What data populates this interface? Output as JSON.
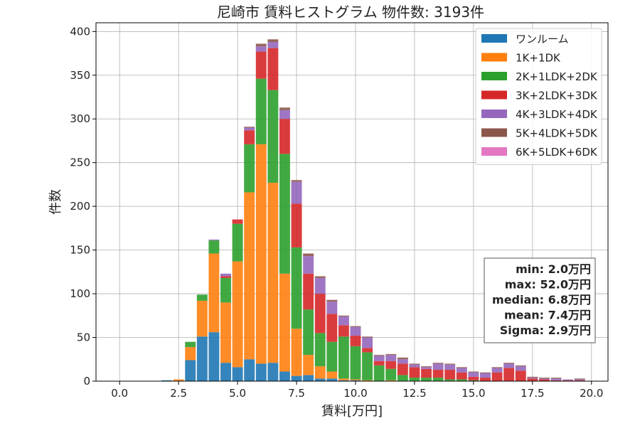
{
  "chart_data": {
    "type": "bar",
    "stacked": true,
    "title": "尼崎市 賃料ヒストグラム 物件数: 3193件",
    "xlabel": "賃料[万円]",
    "ylabel": "件数",
    "xlim": [
      -1.0,
      20.7
    ],
    "ylim": [
      0,
      410
    ],
    "xticks": [
      0.0,
      2.5,
      5.0,
      7.5,
      10.0,
      12.5,
      15.0,
      17.5,
      20.0
    ],
    "xtick_labels": [
      "0.0",
      "2.5",
      "5.0",
      "7.5",
      "10.0",
      "12.5",
      "15.0",
      "17.5",
      "20.0"
    ],
    "yticks": [
      0,
      50,
      100,
      150,
      200,
      250,
      300,
      350,
      400
    ],
    "ytick_labels": [
      "0",
      "50",
      "100",
      "150",
      "200",
      "250",
      "300",
      "350",
      "400"
    ],
    "grid": true,
    "legend_position": "top-right",
    "bin_width": 0.5,
    "x": [
      2.0,
      2.5,
      3.0,
      3.5,
      4.0,
      4.5,
      5.0,
      5.5,
      6.0,
      6.5,
      7.0,
      7.5,
      8.0,
      8.5,
      9.0,
      9.5,
      10.0,
      10.5,
      11.0,
      11.5,
      12.0,
      12.5,
      13.0,
      13.5,
      14.0,
      14.5,
      15.0,
      15.5,
      16.0,
      16.5,
      17.0,
      17.5,
      18.0,
      18.5,
      19.0,
      19.5
    ],
    "series": [
      {
        "name": "ワンルーム",
        "color": "#1f77b4",
        "values": [
          1,
          0,
          24,
          51,
          56,
          21,
          16,
          25,
          20,
          21,
          11,
          6,
          7,
          3,
          3,
          1,
          1,
          0,
          0,
          0,
          0,
          0,
          0,
          0,
          0,
          0,
          0,
          0,
          0,
          0,
          0,
          0,
          0,
          0,
          0,
          0
        ]
      },
      {
        "name": "1K+1DK",
        "color": "#ff7f0e",
        "values": [
          0,
          2,
          15,
          41,
          90,
          69,
          121,
          191,
          251,
          206,
          112,
          54,
          23,
          14,
          8,
          2,
          1,
          1,
          0,
          1,
          0,
          0,
          0,
          0,
          0,
          0,
          0,
          0,
          0,
          0,
          0,
          0,
          0,
          0,
          0,
          0
        ]
      },
      {
        "name": "2K+1LDK+2DK",
        "color": "#2ca02c",
        "values": [
          0,
          0,
          6,
          7,
          15,
          28,
          43,
          55,
          75,
          106,
          137,
          93,
          52,
          38,
          34,
          48,
          38,
          32,
          18,
          13,
          7,
          4,
          4,
          4,
          2,
          2,
          1,
          0,
          0,
          0,
          0,
          0,
          0,
          0,
          0,
          0
        ]
      },
      {
        "name": "3K+2LDK+3DK",
        "color": "#d62728",
        "values": [
          0,
          0,
          0,
          0,
          0,
          2,
          5,
          16,
          31,
          48,
          40,
          50,
          41,
          45,
          32,
          13,
          12,
          5,
          5,
          9,
          13,
          12,
          10,
          9,
          11,
          8,
          4,
          4,
          10,
          15,
          12,
          3,
          2,
          1,
          1,
          1
        ]
      },
      {
        "name": "4K+3LDK+4DK",
        "color": "#9467bd",
        "values": [
          0,
          0,
          0,
          0,
          1,
          3,
          0,
          3,
          6,
          7,
          10,
          25,
          20,
          18,
          14,
          10,
          10,
          12,
          6,
          7,
          5,
          3,
          2,
          7,
          6,
          5,
          5,
          5,
          5,
          5,
          5,
          1,
          1,
          2,
          1,
          1
        ]
      },
      {
        "name": "5K+4LDK+5DK",
        "color": "#8c564b",
        "values": [
          0,
          0,
          0,
          0,
          0,
          0,
          0,
          1,
          3,
          3,
          3,
          2,
          3,
          2,
          2,
          1,
          1,
          1,
          1,
          1,
          2,
          1,
          1,
          1,
          1,
          1,
          1,
          1,
          1,
          1,
          1,
          1,
          1,
          1,
          0,
          1
        ]
      },
      {
        "name": "6K+5LDK+6DK",
        "color": "#e377c2",
        "values": [
          0,
          0,
          0,
          0,
          0,
          0,
          0,
          0,
          0,
          0,
          0,
          0,
          0,
          0,
          0,
          0,
          0,
          0,
          0,
          0,
          0,
          0,
          0,
          0,
          0,
          0,
          0,
          0,
          0,
          0,
          0,
          0,
          0,
          0,
          0,
          0
        ]
      }
    ],
    "stats_box": {
      "lines": [
        "min: 2.0万円",
        "max: 52.0万円",
        "median: 6.8万円",
        "mean: 7.4万円",
        "Sigma: 2.9万円"
      ],
      "position": "right-middle"
    }
  }
}
